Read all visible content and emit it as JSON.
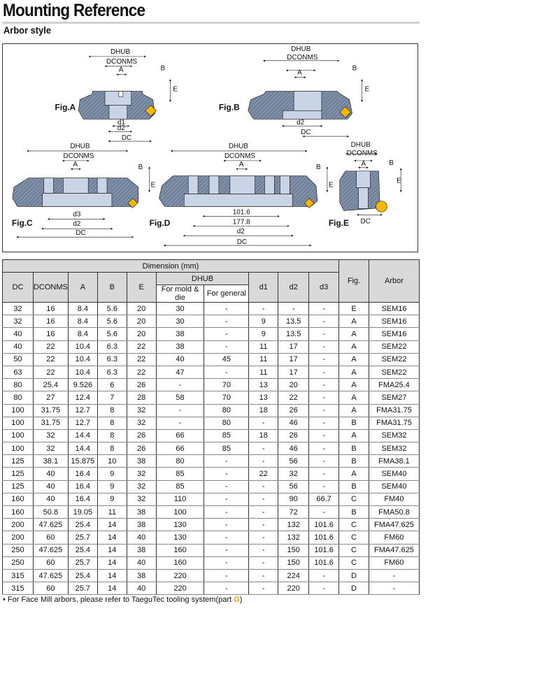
{
  "header": {
    "title": "Mounting Reference",
    "subtitle": "Arbor style"
  },
  "figures": {
    "labels": {
      "a": "Fig.A",
      "b": "Fig.B",
      "c": "Fig.C",
      "d": "Fig.D",
      "e": "Fig.E"
    },
    "dims": {
      "dhub": "DHUB",
      "dconms": "DCONMS",
      "a": "A",
      "b": "B",
      "e": "E",
      "d1": "d1",
      "d2": "d2",
      "d3": "d3",
      "dc": "DC",
      "d_101": "101.6",
      "d_177": "177.8"
    },
    "colors": {
      "body": "#7f8fa8",
      "bore": "#c9d5e6",
      "insert": "#f5b800"
    }
  },
  "table": {
    "group_header": "Dimension (mm)",
    "headers": {
      "dc": "DC",
      "dconms": "DCONMS",
      "a": "A",
      "b": "B",
      "e": "E",
      "dhub": "DHUB",
      "mold": "For mold & die",
      "general": "For general",
      "d1": "d1",
      "d2": "d2",
      "d3": "d3",
      "fig": "Fig.",
      "arbor": "Arbor"
    },
    "rows": [
      [
        "32",
        "16",
        "8.4",
        "5.6",
        "20",
        "30",
        "-",
        "-",
        "-",
        "-",
        "E",
        "SEM16"
      ],
      [
        "32",
        "16",
        "8.4",
        "5.6",
        "20",
        "30",
        "-",
        "9",
        "13.5",
        "-",
        "A",
        "SEM16"
      ],
      [
        "40",
        "16",
        "8.4",
        "5.6",
        "20",
        "38",
        "-",
        "9",
        "13.5",
        "-",
        "A",
        "SEM16"
      ],
      [
        "40",
        "22",
        "10.4",
        "6.3",
        "22",
        "38",
        "-",
        "11",
        "17",
        "-",
        "A",
        "SEM22"
      ],
      [
        "50",
        "22",
        "10.4",
        "6.3",
        "22",
        "40",
        "45",
        "11",
        "17",
        "-",
        "A",
        "SEM22"
      ],
      [
        "63",
        "22",
        "10.4",
        "6.3",
        "22",
        "47",
        "-",
        "11",
        "17",
        "-",
        "A",
        "SEM22"
      ],
      [
        "80",
        "25.4",
        "9.526",
        "6",
        "26",
        "-",
        "70",
        "13",
        "20",
        "-",
        "A",
        "FMA25.4"
      ],
      [
        "80",
        "27",
        "12.4",
        "7",
        "28",
        "58",
        "70",
        "13",
        "22",
        "-",
        "A",
        "SEM27"
      ],
      [
        "100",
        "31.75",
        "12.7",
        "8",
        "32",
        "-",
        "80",
        "18",
        "26",
        "-",
        "A",
        "FMA31.75"
      ],
      [
        "100",
        "31.75",
        "12.7",
        "8",
        "32",
        "-",
        "80",
        "-",
        "46",
        "-",
        "B",
        "FMA31.75"
      ],
      [
        "100",
        "32",
        "14.4",
        "8",
        "26",
        "66",
        "85",
        "18",
        "26",
        "-",
        "A",
        "SEM32"
      ],
      [
        "100",
        "32",
        "14.4",
        "8",
        "26",
        "66",
        "85",
        "-",
        "46",
        "-",
        "B",
        "SEM32"
      ],
      [
        "125",
        "38.1",
        "15.875",
        "10",
        "38",
        "80",
        "-",
        "-",
        "56",
        "-",
        "B",
        "FMA38.1"
      ],
      [
        "125",
        "40",
        "16.4",
        "9",
        "32",
        "85",
        "-",
        "22",
        "32",
        "-",
        "A",
        "SEM40"
      ],
      [
        "125",
        "40",
        "16.4",
        "9",
        "32",
        "85",
        "-",
        "-",
        "56",
        "-",
        "B",
        "SEM40"
      ],
      [
        "160",
        "40",
        "16.4",
        "9",
        "32",
        "110",
        "-",
        "-",
        "90",
        "66.7",
        "C",
        "FM40"
      ],
      [
        "160",
        "50.8",
        "19.05",
        "11",
        "38",
        "100",
        "-",
        "-",
        "72",
        "-",
        "B",
        "FMA50.8"
      ],
      [
        "200",
        "47.625",
        "25.4",
        "14",
        "38",
        "130",
        "-",
        "-",
        "132",
        "101.6",
        "C",
        "FMA47.625"
      ],
      [
        "200",
        "60",
        "25.7",
        "14",
        "40",
        "130",
        "-",
        "-",
        "132",
        "101.6",
        "C",
        "FM60"
      ],
      [
        "250",
        "47.625",
        "25.4",
        "14",
        "38",
        "160",
        "-",
        "-",
        "150",
        "101.6",
        "C",
        "FMA47.625"
      ],
      [
        "250",
        "60",
        "25.7",
        "14",
        "40",
        "160",
        "-",
        "-",
        "150",
        "101.6",
        "C",
        "FM60"
      ],
      [
        "315",
        "47.625",
        "25.4",
        "14",
        "38",
        "220",
        "-",
        "-",
        "224",
        "-",
        "D",
        "-"
      ],
      [
        "315",
        "60",
        "25.7",
        "14",
        "40",
        "220",
        "-",
        "-",
        "220",
        "-",
        "D",
        "-"
      ]
    ]
  },
  "note": {
    "text": "• For Face Mill arbors, please refer to TaeguTec tooling system(part ",
    "part": "G",
    "close": ")"
  }
}
